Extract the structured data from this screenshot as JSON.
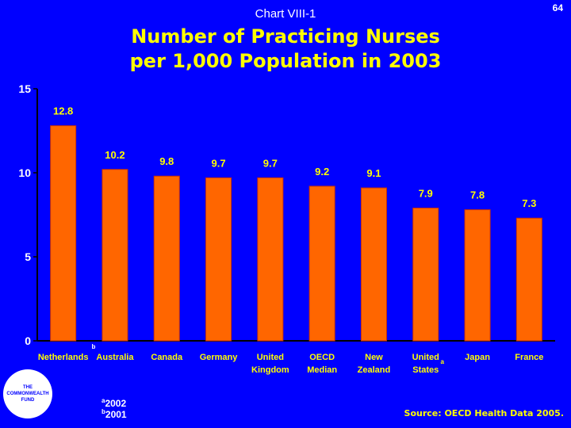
{
  "header": {
    "chart_label": "Chart VIII-1",
    "page_number": "64",
    "title_line1": "Number of Practicing Nurses",
    "title_line2": "per 1,000 Population in 2003"
  },
  "chart_data": {
    "type": "bar",
    "title": "Number of Practicing Nurses per 1,000 Population in 2003",
    "xlabel": "",
    "ylabel": "",
    "ylim": [
      0,
      15
    ],
    "yticks": [
      "0",
      "5",
      "10",
      "15"
    ],
    "grid": false,
    "categories": [
      [
        "Netherlands"
      ],
      [
        "Australia"
      ],
      [
        "Canada"
      ],
      [
        "Germany"
      ],
      [
        "United",
        "Kingdom"
      ],
      [
        "OECD",
        "Median"
      ],
      [
        "New",
        "Zealand"
      ],
      [
        "United",
        "States"
      ],
      [
        "Japan"
      ],
      [
        "France"
      ]
    ],
    "footnote_marks": [
      "",
      "b",
      "",
      "",
      "",
      "",
      "",
      "a",
      "",
      ""
    ],
    "values": [
      12.8,
      10.2,
      9.8,
      9.7,
      9.7,
      9.2,
      9.1,
      7.9,
      7.8,
      7.3
    ],
    "data_labels": [
      "12.8",
      "10.2",
      "9.8",
      "9.7",
      "9.7",
      "9.2",
      "9.1",
      "7.9",
      "7.8",
      "7.3"
    ],
    "colors": {
      "bar": "#ff6600",
      "bar_edge": "#cc3300",
      "axis": "#000000",
      "value_text": "#ffff00",
      "axis_text": "#ffffff"
    }
  },
  "footer": {
    "logo_lines": [
      "THE",
      "COMMONWEALTH",
      "FUND"
    ],
    "note_a_mark": "a",
    "note_a_text": "2002",
    "note_b_mark": "b",
    "note_b_text": "2001",
    "source": "Source: OECD Health Data 2005."
  }
}
